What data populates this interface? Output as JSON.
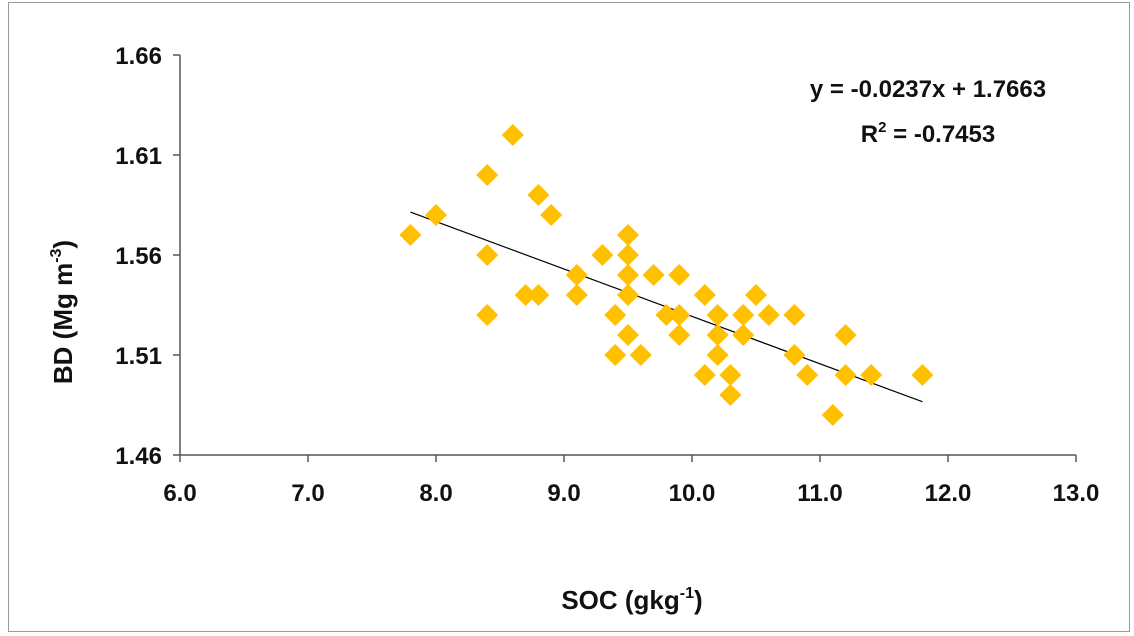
{
  "chart_data": {
    "type": "scatter",
    "xlabel": "SOC (gkg",
    "xlabel_sup": "-1",
    "xlabel_end": ")",
    "ylabel": "BD (Mg m",
    "ylabel_sup": "-3",
    "ylabel_end": ")",
    "xlim": [
      6.0,
      13.0
    ],
    "ylim": [
      1.46,
      1.66
    ],
    "x_ticks": [
      "6.0",
      "7.0",
      "8.0",
      "9.0",
      "10.0",
      "11.0",
      "12.0",
      "13.0"
    ],
    "y_ticks": [
      "1.46",
      "1.51",
      "1.56",
      "1.61",
      "1.66"
    ],
    "grid": false,
    "marker_color": "#FFC000",
    "line_color": "#000000",
    "trendline": {
      "slope": -0.0237,
      "intercept": 1.7663,
      "x_range": [
        7.8,
        11.8
      ],
      "equation": "y = -0.0237x + 1.7663",
      "r2_prefix": "R",
      "r2_sup": "2",
      "r2_value": " = -0.7453"
    },
    "series": [
      {
        "points": [
          [
            7.8,
            1.57
          ],
          [
            8.0,
            1.58
          ],
          [
            8.4,
            1.6
          ],
          [
            8.4,
            1.56
          ],
          [
            8.4,
            1.53
          ],
          [
            8.6,
            1.62
          ],
          [
            8.7,
            1.54
          ],
          [
            8.8,
            1.59
          ],
          [
            8.8,
            1.54
          ],
          [
            8.9,
            1.58
          ],
          [
            9.1,
            1.55
          ],
          [
            9.1,
            1.54
          ],
          [
            9.3,
            1.56
          ],
          [
            9.4,
            1.53
          ],
          [
            9.4,
            1.51
          ],
          [
            9.5,
            1.57
          ],
          [
            9.5,
            1.56
          ],
          [
            9.5,
            1.55
          ],
          [
            9.5,
            1.54
          ],
          [
            9.5,
            1.52
          ],
          [
            9.6,
            1.51
          ],
          [
            9.7,
            1.55
          ],
          [
            9.8,
            1.53
          ],
          [
            9.9,
            1.55
          ],
          [
            9.9,
            1.53
          ],
          [
            9.9,
            1.52
          ],
          [
            10.1,
            1.54
          ],
          [
            10.1,
            1.5
          ],
          [
            10.2,
            1.53
          ],
          [
            10.2,
            1.52
          ],
          [
            10.2,
            1.51
          ],
          [
            10.3,
            1.5
          ],
          [
            10.3,
            1.49
          ],
          [
            10.4,
            1.53
          ],
          [
            10.4,
            1.52
          ],
          [
            10.5,
            1.54
          ],
          [
            10.6,
            1.53
          ],
          [
            10.8,
            1.53
          ],
          [
            10.8,
            1.51
          ],
          [
            10.9,
            1.5
          ],
          [
            11.1,
            1.48
          ],
          [
            11.2,
            1.52
          ],
          [
            11.2,
            1.5
          ],
          [
            11.4,
            1.5
          ],
          [
            11.8,
            1.5
          ]
        ]
      }
    ]
  }
}
